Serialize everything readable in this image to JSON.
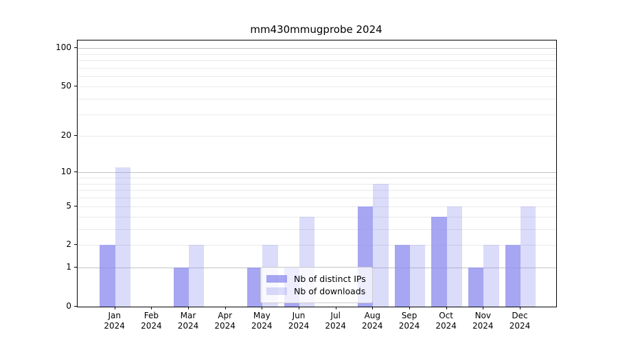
{
  "title": "mm430mmugprobe 2024",
  "chart_data": {
    "type": "bar",
    "title": "mm430mmugprobe 2024",
    "x_categories": [
      "Jan",
      "Feb",
      "Mar",
      "Apr",
      "May",
      "Jun",
      "Jul",
      "Aug",
      "Sep",
      "Oct",
      "Nov",
      "Dec"
    ],
    "x_year_label": "2024",
    "series": [
      {
        "name": "Nb of distinct IPs",
        "color": "rgba(136,136,238,0.75)",
        "values": [
          2,
          0,
          1,
          0,
          1,
          1,
          0,
          5,
          2,
          4,
          1,
          2
        ]
      },
      {
        "name": "Nb of downloads",
        "color": "rgba(136,136,238,0.30)",
        "values": [
          11,
          0,
          2,
          0,
          2,
          4,
          0,
          8,
          2,
          5,
          2,
          5
        ]
      }
    ],
    "y_axis": {
      "scale": "log1p",
      "tick_values": [
        0,
        1,
        2,
        5,
        10,
        20,
        50,
        100
      ],
      "tick_labels": [
        "0",
        "1",
        "2",
        "5",
        "10",
        "20",
        "50",
        "100"
      ],
      "major_gridlines": [
        1,
        10,
        100
      ],
      "minor_gridlines": [
        2,
        3,
        4,
        5,
        6,
        7,
        8,
        9,
        20,
        30,
        40,
        50,
        60,
        70,
        80,
        90
      ],
      "ylim": [
        0,
        114
      ]
    },
    "grid": true,
    "legend": {
      "position": "bottom-center",
      "entries": [
        "Nb of distinct IPs",
        "Nb of downloads"
      ]
    },
    "colors": {
      "major_grid": "#c2c2c2",
      "minor_grid": "#e9e9e9",
      "spine": "#000000",
      "series_dark": "rgba(136,136,238,0.75)",
      "series_light": "rgba(136,136,238,0.30)"
    }
  }
}
